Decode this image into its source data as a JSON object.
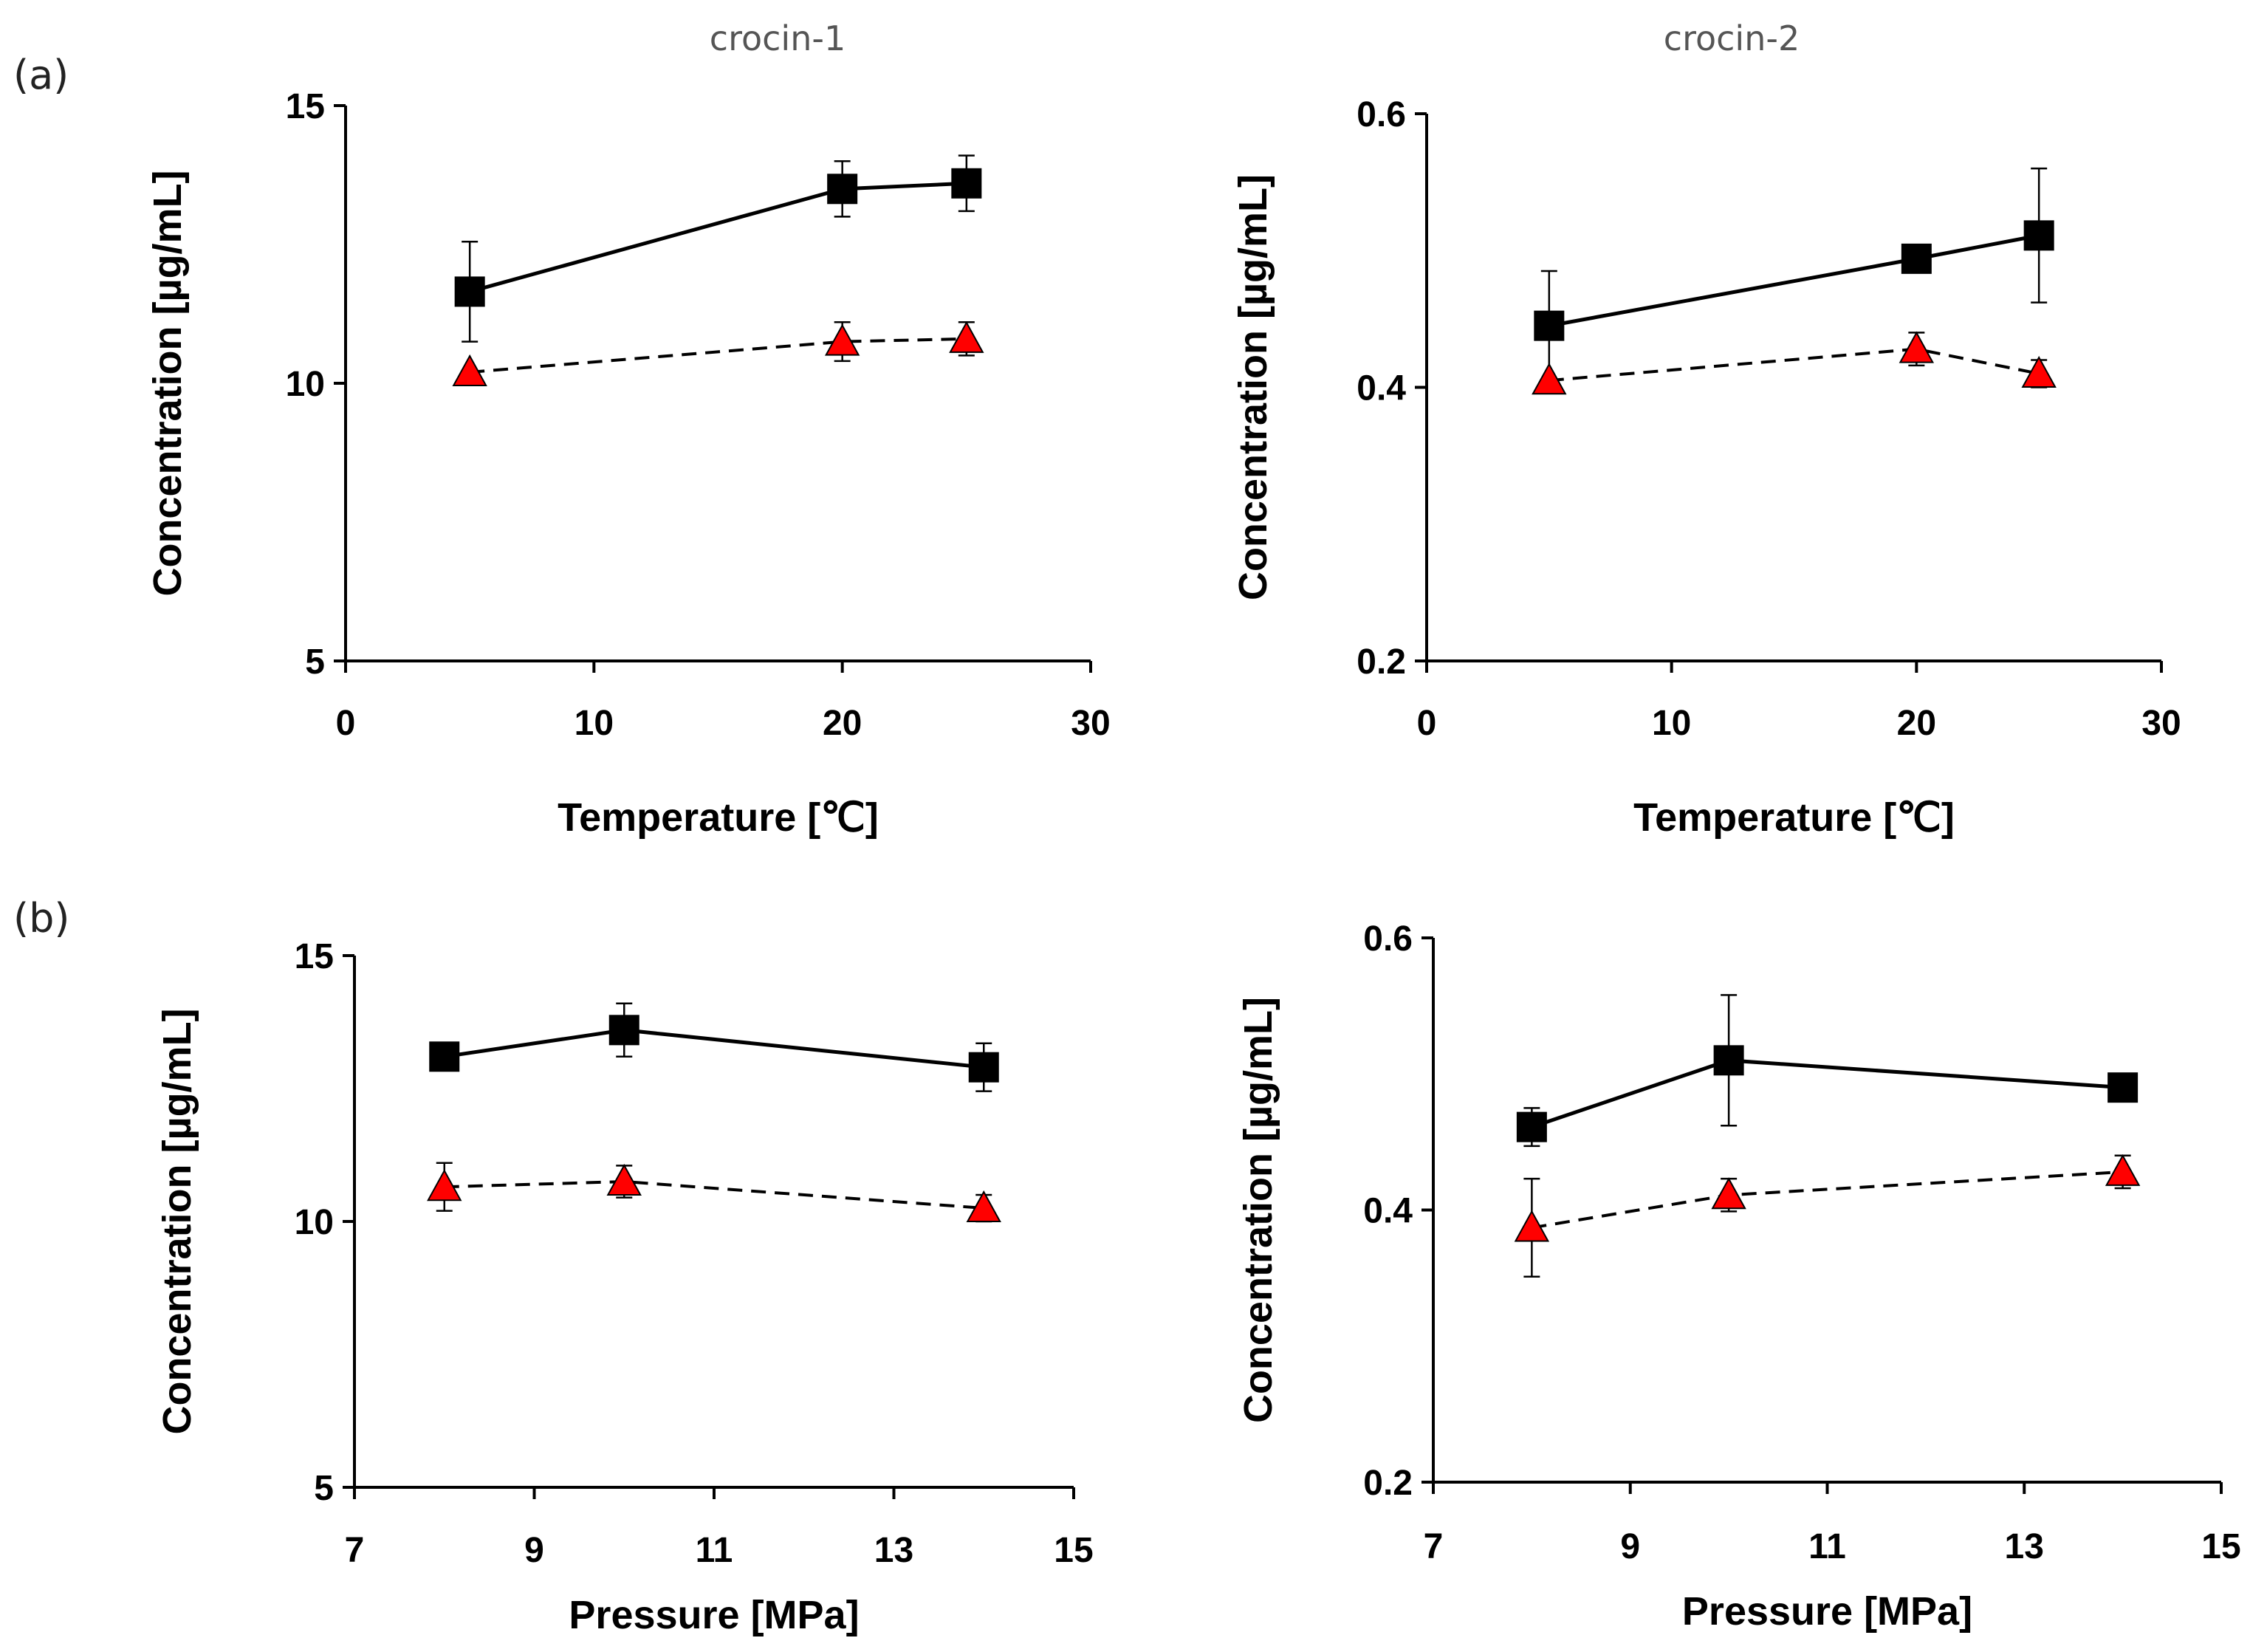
{
  "panel_labels": {
    "a": "(a)",
    "b": "(b)"
  },
  "column_titles": {
    "left": "crocin-1",
    "right": "crocin-2"
  },
  "colors": {
    "series_square": "#000000",
    "series_triangle": "#ff0000",
    "axis": "#000000"
  },
  "chart_data": [
    {
      "id": "a-crocin-1",
      "type": "line",
      "title": "crocin-1",
      "xlabel": "Temperature [℃]",
      "ylabel": "Concentration  [µg/mL]",
      "xlim": [
        0,
        30
      ],
      "ylim": [
        5,
        15
      ],
      "xticks": [
        0,
        10,
        20,
        30
      ],
      "xtick_labels": [
        "0",
        "10",
        "20",
        "30"
      ],
      "yticks": [
        5,
        10,
        15
      ],
      "ytick_labels": [
        "5",
        "10",
        "15"
      ],
      "grid": false,
      "series": [
        {
          "name": "squares",
          "marker": "square",
          "line": "solid",
          "color": "#000000",
          "x": [
            5,
            20,
            25
          ],
          "y": [
            11.65,
            13.5,
            13.6
          ],
          "err": [
            0.9,
            0.5,
            0.5
          ]
        },
        {
          "name": "triangles",
          "marker": "triangle",
          "line": "dashed",
          "color": "#ff0000",
          "x": [
            5,
            20,
            25
          ],
          "y": [
            10.2,
            10.75,
            10.8
          ],
          "err": [
            0,
            0.35,
            0.3
          ]
        }
      ]
    },
    {
      "id": "a-crocin-2",
      "type": "line",
      "title": "crocin-2",
      "xlabel": "Temperature [℃]",
      "ylabel": "Concentration  [µg/mL]",
      "xlim": [
        0,
        30
      ],
      "ylim": [
        0.2,
        0.6
      ],
      "xticks": [
        0,
        10,
        20,
        30
      ],
      "xtick_labels": [
        "0",
        "10",
        "20",
        "30"
      ],
      "yticks": [
        0.2,
        0.4,
        0.6
      ],
      "ytick_labels": [
        "0.2",
        "0.4",
        "0.6"
      ],
      "grid": false,
      "series": [
        {
          "name": "squares",
          "marker": "square",
          "line": "solid",
          "color": "#000000",
          "x": [
            5,
            20,
            25
          ],
          "y": [
            0.445,
            0.494,
            0.511
          ],
          "err": [
            0.04,
            0.005,
            0.049
          ]
        },
        {
          "name": "triangles",
          "marker": "triangle",
          "line": "dashed",
          "color": "#ff0000",
          "x": [
            5,
            20,
            25
          ],
          "y": [
            0.405,
            0.428,
            0.41
          ],
          "err": [
            0,
            0.012,
            0.01
          ]
        }
      ]
    },
    {
      "id": "b-crocin-1",
      "type": "line",
      "title": "",
      "xlabel": "Pressure [MPa]",
      "ylabel": "Concentration  [µg/mL]",
      "xlim": [
        7,
        15
      ],
      "ylim": [
        5,
        15
      ],
      "xticks": [
        7,
        9,
        11,
        13,
        15
      ],
      "xtick_labels": [
        "7",
        "9",
        "11",
        "13",
        "15"
      ],
      "yticks": [
        5,
        10,
        15
      ],
      "ytick_labels": [
        "5",
        "10",
        "15"
      ],
      "grid": false,
      "series": [
        {
          "name": "squares",
          "marker": "square",
          "line": "solid",
          "color": "#000000",
          "x": [
            8,
            10,
            14
          ],
          "y": [
            13.1,
            13.6,
            12.9
          ],
          "err": [
            0,
            0.5,
            0.45
          ]
        },
        {
          "name": "triangles",
          "marker": "triangle",
          "line": "dashed",
          "color": "#ff0000",
          "x": [
            8,
            10,
            14
          ],
          "y": [
            10.65,
            10.75,
            10.25
          ],
          "err": [
            0.45,
            0.3,
            0.25
          ]
        }
      ]
    },
    {
      "id": "b-crocin-2",
      "type": "line",
      "title": "",
      "xlabel": "Pressure [MPa]",
      "ylabel": "Concentration  [µg/mL]",
      "xlim": [
        7,
        15
      ],
      "ylim": [
        0.2,
        0.6
      ],
      "xticks": [
        7,
        9,
        11,
        13,
        15
      ],
      "xtick_labels": [
        "7",
        "9",
        "11",
        "13",
        "15"
      ],
      "yticks": [
        0.2,
        0.4,
        0.6
      ],
      "ytick_labels": [
        "0.2",
        "0.4",
        "0.6"
      ],
      "grid": false,
      "series": [
        {
          "name": "squares",
          "marker": "square",
          "line": "solid",
          "color": "#000000",
          "x": [
            8,
            10,
            14
          ],
          "y": [
            0.461,
            0.51,
            0.49
          ],
          "err": [
            0.014,
            0.048,
            0.005
          ]
        },
        {
          "name": "triangles",
          "marker": "triangle",
          "line": "dashed",
          "color": "#ff0000",
          "x": [
            8,
            10,
            14
          ],
          "y": [
            0.387,
            0.411,
            0.428
          ],
          "err": [
            0.036,
            0.012,
            0.012
          ]
        }
      ]
    }
  ]
}
